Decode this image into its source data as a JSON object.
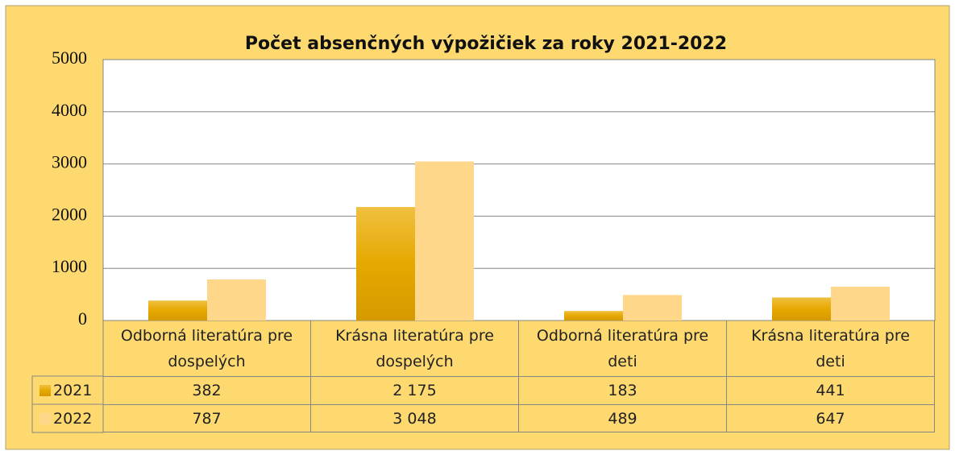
{
  "chart_data": {
    "type": "bar",
    "title": "Počet absenčných výpožičiek za roky 2021-2022",
    "categories": [
      "Odborná literatúra pre dospelých",
      "Krásna literatúra pre dospelých",
      "Odborná literatúra pre deti",
      "Krásna literatúra pre deti"
    ],
    "series": [
      {
        "name": "2021",
        "color": "#e6a800",
        "values": [
          382,
          2175,
          183,
          441
        ],
        "value_labels": [
          "382",
          "2 175",
          "183",
          "441"
        ]
      },
      {
        "name": "2022",
        "color": "#fed78a",
        "values": [
          787,
          3048,
          489,
          647
        ],
        "value_labels": [
          "787",
          "3 048",
          "489",
          "647"
        ]
      }
    ],
    "ylim": [
      0,
      5000
    ],
    "yticks": [
      0,
      1000,
      2000,
      3000,
      4000,
      5000
    ],
    "grid": true
  }
}
